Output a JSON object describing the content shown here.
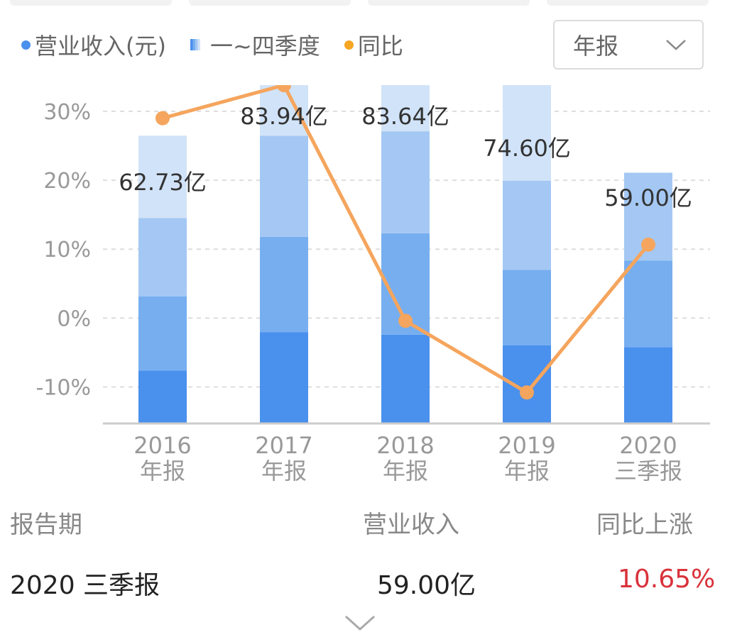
{
  "legend": {
    "revenue": "营业收入(元)",
    "quarters": "一~四季度",
    "yoy": "同比"
  },
  "period_select": {
    "value": "年报"
  },
  "colors": {
    "q1": "#4a90ed",
    "q2": "#76aef0",
    "q3": "#a4c8f3",
    "q4": "#d1e3f8",
    "yoy_line": "#f5a55d",
    "revenue_dot": "#4a90ed",
    "yoy_dot": "#f5a623",
    "up": "#d9323b"
  },
  "chart_data": {
    "type": "bar",
    "categories": [
      [
        "2016",
        "年报"
      ],
      [
        "2017",
        "年报"
      ],
      [
        "2018",
        "年报"
      ],
      [
        "2019",
        "年报"
      ],
      [
        "2020",
        "三季报"
      ]
    ],
    "revenue_labels": [
      "62.73亿",
      "83.94亿",
      "83.64亿",
      "74.60亿",
      "59.00亿"
    ],
    "revenue_values": [
      62.73,
      83.94,
      83.64,
      74.6,
      59.0
    ],
    "revenue_unit": "亿",
    "stack_series": [
      {
        "values": [
          13.3,
          22.9,
          22.3,
          19.6,
          19.2
        ]
      },
      {
        "values": [
          18.6,
          24.0,
          25.5,
          19.0,
          21.7
        ]
      },
      {
        "values": [
          19.7,
          25.4,
          25.6,
          22.4,
          22.1
        ]
      },
      {
        "values": [
          20.7,
          24.3,
          20.1,
          30.9,
          0
        ]
      }
    ],
    "stack_unit": "亿",
    "yoy": {
      "values": [
        29.0,
        33.8,
        -0.4,
        -10.8,
        10.65
      ],
      "unit": "%"
    },
    "y_axis": {
      "ticks": [
        "30%",
        "20%",
        "10%",
        "0%",
        "-10%"
      ],
      "tick_values": [
        30,
        20,
        10,
        0,
        -10
      ],
      "min": -15.3,
      "max": 33.8
    },
    "grid": true
  },
  "table": {
    "headers": [
      "报告期",
      "营业收入",
      "同比上涨"
    ],
    "row": {
      "period": "2020 三季报",
      "revenue": "59.00亿",
      "change": "10.65%"
    }
  }
}
